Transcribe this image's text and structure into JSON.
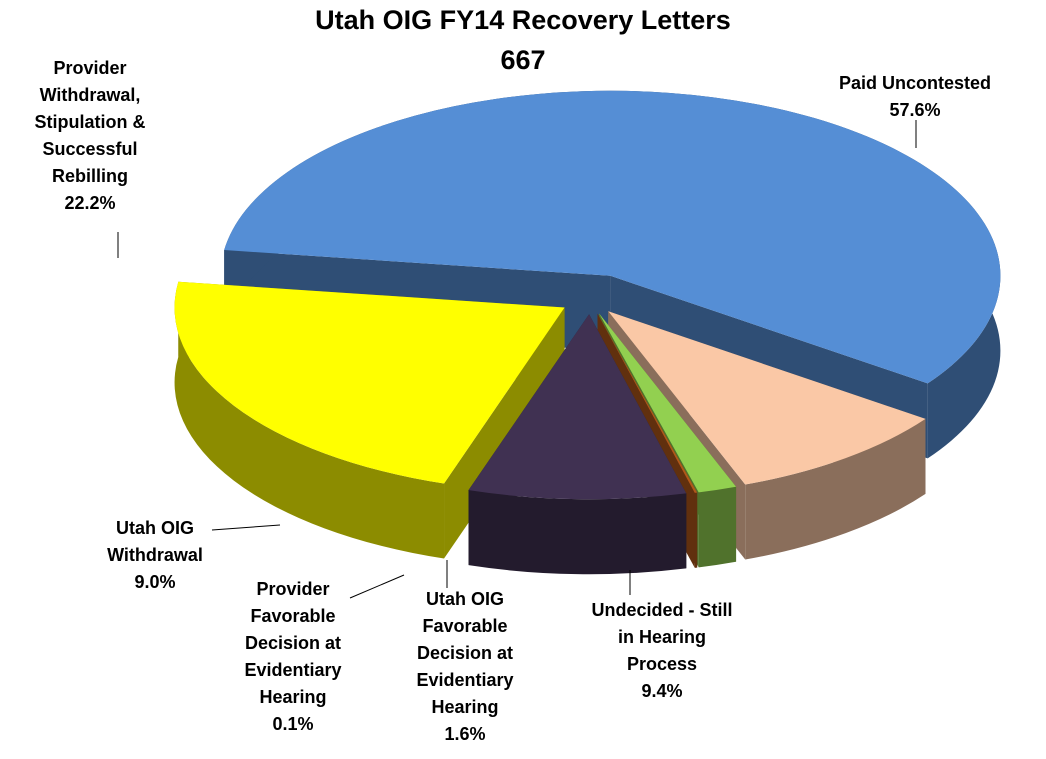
{
  "chart_data": {
    "type": "pie3d",
    "title": "Utah OIG FY14 Recovery Letters",
    "subtitle": "667",
    "categories": [
      "Paid Uncontested",
      "Undecided - Still in Hearing Process",
      "Utah OIG Favorable Decision at Evidentiary Hearing",
      "Provider Favorable Decision at Evidentiary Hearing",
      "Utah OIG Withdrawal",
      "Provider Withdrawal, Stipulation & Successful Rebilling"
    ],
    "values": [
      57.6,
      9.4,
      1.6,
      0.1,
      9.0,
      22.2
    ],
    "value_labels": [
      "57.6%",
      "9.4%",
      "1.6%",
      "0.1%",
      "9.0%",
      "22.2%"
    ],
    "colors": [
      "#558ed5",
      "#fac8a6",
      "#92d050",
      "#b0581a",
      "#403152",
      "#ffff00"
    ]
  }
}
